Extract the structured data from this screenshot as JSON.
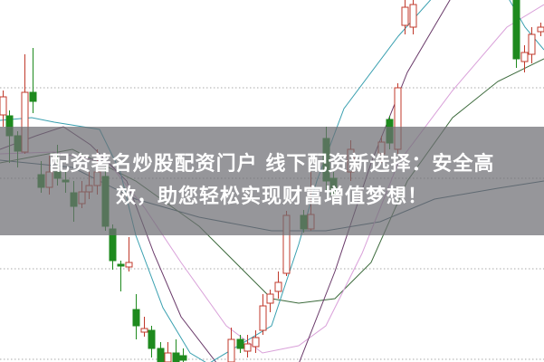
{
  "headline": {
    "line1": "配资著名炒股配资门户 线下配资新选择：安全高",
    "line2": "效，助您轻松实现财富增值梦想！"
  },
  "colors": {
    "up_candle": "#c0392b",
    "down_candle": "#1e8a1e",
    "ma_teal": "#3aa0b0",
    "ma_purple": "#6a3a6a",
    "ma_pink": "#d9a0d9",
    "ma_green": "#3d6b3d",
    "ma_slate": "#3f6070",
    "grid": "#aaaaaa",
    "banner": "#6e6e73"
  }
}
